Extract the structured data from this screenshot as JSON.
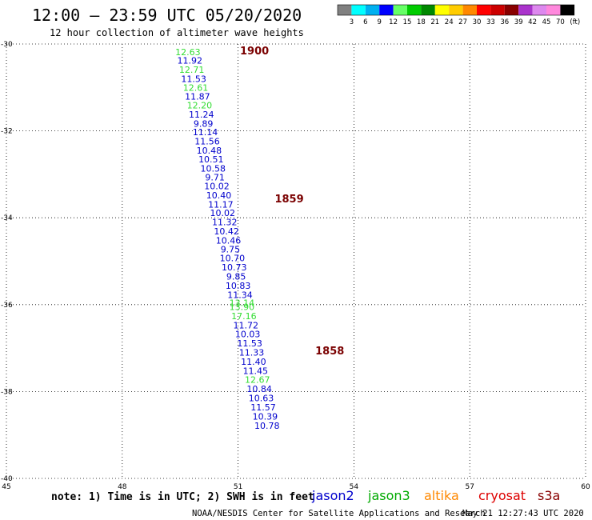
{
  "title": "12:00 – 23:59 UTC 05/20/2020",
  "subtitle": "12 hour collection of altimeter wave heights",
  "colorbar": {
    "colors": [
      "#808080",
      "#00ffff",
      "#00b0f0",
      "#0000ff",
      "#66ff66",
      "#00cc00",
      "#008800",
      "#ffff00",
      "#ffcc00",
      "#ff8800",
      "#ff0000",
      "#cc0000",
      "#880000",
      "#aa33cc",
      "#dd88ee",
      "#ff88dd",
      "#000000"
    ],
    "labels": [
      "3",
      "6",
      "9",
      "12",
      "15",
      "18",
      "21",
      "24",
      "27",
      "30",
      "33",
      "36",
      "39",
      "42",
      "45",
      "70"
    ],
    "unit": "(ft)"
  },
  "note": "note: 1) Time is in UTC; 2) SWH is in feet",
  "legend": [
    {
      "name": "jason2",
      "color": "#0000cc"
    },
    {
      "name": "jason3",
      "color": "#00aa00"
    },
    {
      "name": "altika",
      "color": "#ff8800"
    },
    {
      "name": "cryosat",
      "color": "#dd0000"
    },
    {
      "name": "s3a",
      "color": "#880000"
    }
  ],
  "footer_left": "NOAA/NESDIS Center for Satellite Applications and Research",
  "footer_right": "May 21 12:27:43 UTC 2020",
  "chart_data": {
    "type": "scatter",
    "x_ticks": [
      45,
      48,
      51,
      54,
      57,
      60
    ],
    "y_ticks": [
      -30,
      -32,
      -34,
      -36,
      -38,
      -40
    ],
    "xlim": [
      45,
      60
    ],
    "ylim": [
      -40,
      -30
    ],
    "grid": true,
    "time_labels": [
      {
        "text": "1900",
        "x": 51.05,
        "y": -30.15
      },
      {
        "text": "1859",
        "x": 51.95,
        "y": -33.55
      },
      {
        "text": "1858",
        "x": 53.0,
        "y": -37.05
      }
    ],
    "points": [
      {
        "x": 49.7,
        "y": -30.18,
        "v": "12.63",
        "sat": "jason3"
      },
      {
        "x": 49.75,
        "y": -30.38,
        "v": "11.92",
        "sat": "jason2"
      },
      {
        "x": 49.8,
        "y": -30.59,
        "v": "12.71",
        "sat": "jason3"
      },
      {
        "x": 49.85,
        "y": -30.8,
        "v": "11.53",
        "sat": "jason2"
      },
      {
        "x": 49.9,
        "y": -31.0,
        "v": "12.61",
        "sat": "jason3"
      },
      {
        "x": 49.95,
        "y": -31.21,
        "v": "11.87",
        "sat": "jason2"
      },
      {
        "x": 50.0,
        "y": -31.41,
        "v": "12.20",
        "sat": "jason3"
      },
      {
        "x": 50.05,
        "y": -31.62,
        "v": "11.24",
        "sat": "jason2"
      },
      {
        "x": 50.1,
        "y": -31.83,
        "v": "9.89",
        "sat": "jason2"
      },
      {
        "x": 50.15,
        "y": -32.03,
        "v": "11.14",
        "sat": "jason2"
      },
      {
        "x": 50.2,
        "y": -32.24,
        "v": "11.56",
        "sat": "jason2"
      },
      {
        "x": 50.25,
        "y": -32.45,
        "v": "10.48",
        "sat": "jason2"
      },
      {
        "x": 50.3,
        "y": -32.65,
        "v": "10.51",
        "sat": "jason2"
      },
      {
        "x": 50.35,
        "y": -32.86,
        "v": "10.58",
        "sat": "jason2"
      },
      {
        "x": 50.4,
        "y": -33.07,
        "v": "9.71",
        "sat": "jason2"
      },
      {
        "x": 50.45,
        "y": -33.27,
        "v": "10.02",
        "sat": "jason2"
      },
      {
        "x": 50.5,
        "y": -33.48,
        "v": "10.40",
        "sat": "jason2"
      },
      {
        "x": 50.55,
        "y": -33.69,
        "v": "11.17",
        "sat": "jason2"
      },
      {
        "x": 50.6,
        "y": -33.89,
        "v": "10.02",
        "sat": "jason2"
      },
      {
        "x": 50.65,
        "y": -34.1,
        "v": "11.32",
        "sat": "jason2"
      },
      {
        "x": 50.7,
        "y": -34.31,
        "v": "10.42",
        "sat": "jason2"
      },
      {
        "x": 50.75,
        "y": -34.52,
        "v": "10.46",
        "sat": "jason2"
      },
      {
        "x": 50.8,
        "y": -34.72,
        "v": "9.75",
        "sat": "jason2"
      },
      {
        "x": 50.85,
        "y": -34.93,
        "v": "10.70",
        "sat": "jason2"
      },
      {
        "x": 50.9,
        "y": -35.14,
        "v": "10.73",
        "sat": "jason2"
      },
      {
        "x": 50.95,
        "y": -35.35,
        "v": "9.85",
        "sat": "jason2"
      },
      {
        "x": 51.0,
        "y": -35.56,
        "v": "10.83",
        "sat": "jason2"
      },
      {
        "x": 51.05,
        "y": -35.77,
        "v": "11.34",
        "sat": "jason2"
      },
      {
        "x": 51.1,
        "y": -35.96,
        "v": "13.14",
        "sat": "jason3"
      },
      {
        "x": 51.1,
        "y": -36.05,
        "v": "13.90",
        "sat": "jason3"
      },
      {
        "x": 51.15,
        "y": -36.26,
        "v": "17.16",
        "sat": "jason3"
      },
      {
        "x": 51.2,
        "y": -36.47,
        "v": "11.72",
        "sat": "jason2"
      },
      {
        "x": 51.25,
        "y": -36.68,
        "v": "10.03",
        "sat": "jason2"
      },
      {
        "x": 51.3,
        "y": -36.89,
        "v": "11.53",
        "sat": "jason2"
      },
      {
        "x": 51.35,
        "y": -37.1,
        "v": "11.33",
        "sat": "jason2"
      },
      {
        "x": 51.4,
        "y": -37.31,
        "v": "11.40",
        "sat": "jason2"
      },
      {
        "x": 51.45,
        "y": -37.52,
        "v": "11.45",
        "sat": "jason2"
      },
      {
        "x": 51.5,
        "y": -37.73,
        "v": "12.67",
        "sat": "jason3"
      },
      {
        "x": 51.55,
        "y": -37.94,
        "v": "10.84",
        "sat": "jason2"
      },
      {
        "x": 51.6,
        "y": -38.15,
        "v": "10.63",
        "sat": "jason2"
      },
      {
        "x": 51.65,
        "y": -38.36,
        "v": "11.57",
        "sat": "jason2"
      },
      {
        "x": 51.7,
        "y": -38.57,
        "v": "10.39",
        "sat": "jason2"
      },
      {
        "x": 51.75,
        "y": -38.78,
        "v": "10.78",
        "sat": "jason2"
      }
    ]
  }
}
